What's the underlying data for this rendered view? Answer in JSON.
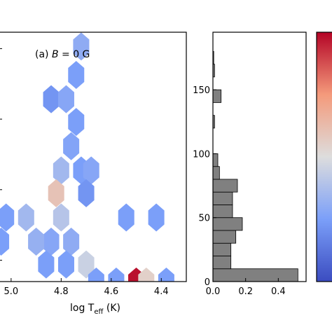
{
  "chart_data": [
    {
      "type": "heatmap",
      "panel_label": {
        "prefix": "(a) ",
        "var": "B",
        "suffix": " = 0 G"
      },
      "xlabel": {
        "base": "log T",
        "sub": "eff",
        "unit": " (K)"
      },
      "xlim": [
        5.05,
        4.3
      ],
      "ylim": [
        0,
        175
      ],
      "x_ticks": [
        "5.0",
        "4.8",
        "4.6",
        "4.4"
      ],
      "x_tick_values": [
        5.0,
        4.8,
        4.6,
        4.4
      ],
      "cells": [
        {
          "x": 4.72,
          "y": 165,
          "value": 0.3
        },
        {
          "x": 4.74,
          "y": 145,
          "value": 0.25
        },
        {
          "x": 4.84,
          "y": 128,
          "value": 0.22
        },
        {
          "x": 4.78,
          "y": 128,
          "value": 0.28
        },
        {
          "x": 4.74,
          "y": 112,
          "value": 0.25
        },
        {
          "x": 4.76,
          "y": 95,
          "value": 0.27
        },
        {
          "x": 4.72,
          "y": 78,
          "value": 0.25
        },
        {
          "x": 4.68,
          "y": 78,
          "value": 0.28
        },
        {
          "x": 4.8,
          "y": 78,
          "value": 0.35
        },
        {
          "x": 4.82,
          "y": 62,
          "value": 0.6
        },
        {
          "x": 4.7,
          "y": 62,
          "value": 0.22
        },
        {
          "x": 4.8,
          "y": 45,
          "value": 0.4
        },
        {
          "x": 5.02,
          "y": 45,
          "value": 0.25
        },
        {
          "x": 4.94,
          "y": 45,
          "value": 0.35
        },
        {
          "x": 4.84,
          "y": 28,
          "value": 0.28
        },
        {
          "x": 4.9,
          "y": 28,
          "value": 0.32
        },
        {
          "x": 5.04,
          "y": 28,
          "value": 0.25
        },
        {
          "x": 4.76,
          "y": 28,
          "value": 0.3
        },
        {
          "x": 4.86,
          "y": 12,
          "value": 0.25
        },
        {
          "x": 4.78,
          "y": 12,
          "value": 0.25
        },
        {
          "x": 4.7,
          "y": 12,
          "value": 0.45
        },
        {
          "x": 4.54,
          "y": 45,
          "value": 0.25
        },
        {
          "x": 4.42,
          "y": 45,
          "value": 0.25
        },
        {
          "x": 4.66,
          "y": 0,
          "value": 0.25
        },
        {
          "x": 4.58,
          "y": 0,
          "value": 0.25
        },
        {
          "x": 4.5,
          "y": 0,
          "value": 0.98
        },
        {
          "x": 4.46,
          "y": 0,
          "value": 0.55
        },
        {
          "x": 4.38,
          "y": 0,
          "value": 0.25
        }
      ]
    },
    {
      "type": "bar",
      "orientation": "horizontal",
      "bin_edges": [
        0,
        10,
        20,
        30,
        40,
        50,
        60,
        70,
        80,
        90,
        100,
        110,
        120,
        130,
        140,
        150,
        160,
        170,
        180
      ],
      "values": [
        0.52,
        0.11,
        0.11,
        0.14,
        0.18,
        0.12,
        0.12,
        0.15,
        0.04,
        0.03,
        0.0,
        0.0,
        0.01,
        0.0,
        0.05,
        0.0,
        0.01,
        0.005
      ],
      "xlim": [
        0,
        0.57
      ],
      "ylim": [
        0,
        195
      ],
      "x_ticks": [
        "0.0",
        "0.2",
        "0.4"
      ],
      "x_tick_values": [
        0.0,
        0.2,
        0.4
      ],
      "y_ticks": [
        "0",
        "50",
        "100",
        "150"
      ],
      "y_tick_values": [
        0,
        50,
        100,
        150
      ],
      "bar_color": "#808080"
    }
  ],
  "colors": {
    "cmap_low": "#3b4cc0",
    "cmap_mid": "#dddddd",
    "cmap_high": "#b40426",
    "colorbar_edge": "#b40426"
  }
}
